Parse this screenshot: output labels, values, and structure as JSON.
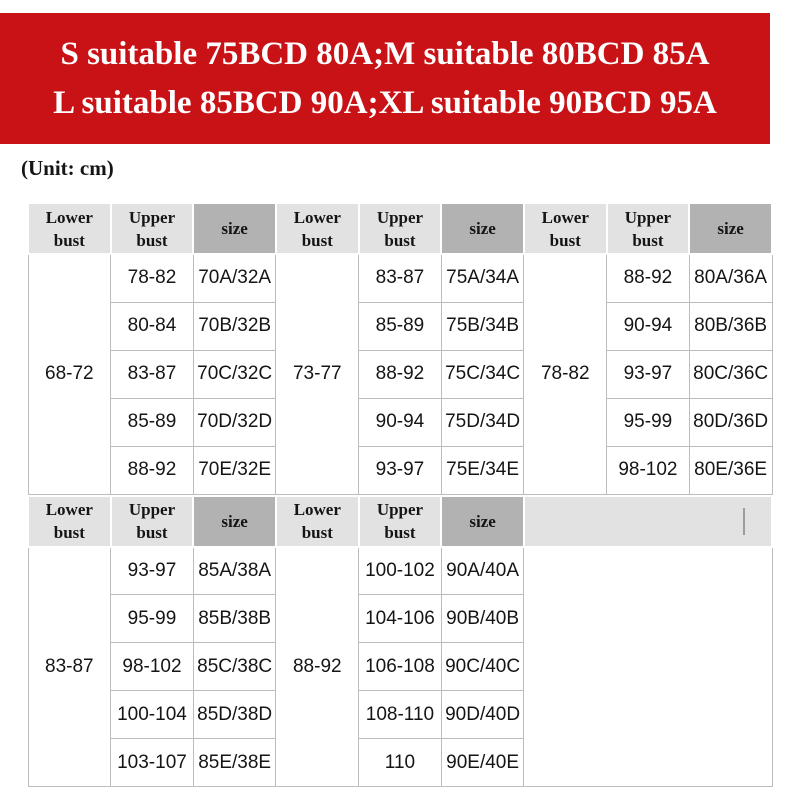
{
  "banner": {
    "line1": "S suitable 75BCD 80A;M suitable 80BCD 85A",
    "line2": "L suitable 85BCD 90A;XL suitable 90BCD 95A"
  },
  "unit_label": "(Unit: cm)",
  "colors": {
    "banner_bg": "#c81216",
    "banner_text": "#ffffff",
    "header_bg": "#e2e2e2",
    "size_header_bg": "#b2b2b2",
    "cell_border": "#bcbcbc",
    "text": "#151515"
  },
  "table": {
    "header": {
      "lower": "Lower bust",
      "upper": "Upper bust",
      "size": "size"
    },
    "columns_per_section": 9,
    "sections": [
      {
        "filler": false,
        "groups": [
          {
            "lower_bust": "68-72",
            "rows": [
              [
                "78-82",
                "70A/32A"
              ],
              [
                "80-84",
                "70B/32B"
              ],
              [
                "83-87",
                "70C/32C"
              ],
              [
                "85-89",
                "70D/32D"
              ],
              [
                "88-92",
                "70E/32E"
              ]
            ]
          },
          {
            "lower_bust": "73-77",
            "rows": [
              [
                "83-87",
                "75A/34A"
              ],
              [
                "85-89",
                "75B/34B"
              ],
              [
                "88-92",
                "75C/34C"
              ],
              [
                "90-94",
                "75D/34D"
              ],
              [
                "93-97",
                "75E/34E"
              ]
            ]
          },
          {
            "lower_bust": "78-82",
            "rows": [
              [
                "88-92",
                "80A/36A"
              ],
              [
                "90-94",
                "80B/36B"
              ],
              [
                "93-97",
                "80C/36C"
              ],
              [
                "95-99",
                "80D/36D"
              ],
              [
                "98-102",
                "80E/36E"
              ]
            ]
          }
        ]
      },
      {
        "filler": true,
        "groups": [
          {
            "lower_bust": "83-87",
            "rows": [
              [
                "93-97",
                "85A/38A"
              ],
              [
                "95-99",
                "85B/38B"
              ],
              [
                "98-102",
                "85C/38C"
              ],
              [
                "100-104",
                "85D/38D"
              ],
              [
                "103-107",
                "85E/38E"
              ]
            ]
          },
          {
            "lower_bust": "88-92",
            "rows": [
              [
                "100-102",
                "90A/40A"
              ],
              [
                "104-106",
                "90B/40B"
              ],
              [
                "106-108",
                "90C/40C"
              ],
              [
                "108-110",
                "90D/40D"
              ],
              [
                "110",
                "90E/40E"
              ]
            ]
          }
        ]
      }
    ]
  }
}
